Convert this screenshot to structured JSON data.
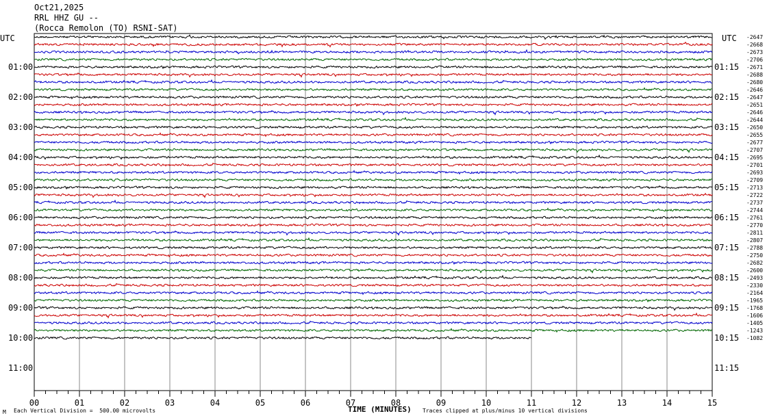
{
  "header": {
    "date": "Oct21,2025",
    "station": "RRL HHZ GU --",
    "location": "(Rocca Remolon (TO) RSNI-SAT)"
  },
  "utc_left": "UTC",
  "utc_right": "UTC",
  "footer": {
    "scale_note": "Each Vertical Division =  500.00 microvolts",
    "clip_note": "Traces clipped at plus/minus 10 vertical divisions",
    "corner_mark": "M"
  },
  "chart_data": {
    "type": "line",
    "title": "",
    "xlabel": "TIME (MINUTES)",
    "ylabel": "",
    "xlim": [
      0,
      15
    ],
    "x_ticks": [
      "00",
      "01",
      "02",
      "03",
      "04",
      "05",
      "06",
      "07",
      "08",
      "09",
      "10",
      "11",
      "12",
      "13",
      "14",
      "15"
    ],
    "left_hour_labels": [
      "01:00",
      "02:00",
      "03:00",
      "04:00",
      "05:00",
      "06:00",
      "07:00",
      "08:00",
      "09:00",
      "10:00",
      "11:00"
    ],
    "right_hour_labels": [
      "01:15",
      "02:15",
      "03:15",
      "04:15",
      "05:15",
      "06:15",
      "07:15",
      "08:15",
      "09:15",
      "10:15",
      "11:15"
    ],
    "trace_colors": [
      "#000000",
      "#cc0000",
      "#0000cc",
      "#006600"
    ],
    "traces_per_hour": 4,
    "trace_minutes": 15,
    "total_traces": 41,
    "last_trace_end_minute": 11.0,
    "right_offsets": [
      "-2647",
      "-2668",
      "-2673",
      "-2706",
      "-2671",
      "-2688",
      "-2680",
      "-2646",
      "-2647",
      "-2651",
      "-2646",
      "-2644",
      "-2650",
      "-2655",
      "-2677",
      "-2707",
      "-2695",
      "-2701",
      "-2693",
      "-2709",
      "-2713",
      "-2722",
      "-2737",
      "-2744",
      "-2761",
      "-2770",
      "-2811",
      "-2807",
      "-2788",
      "-2750",
      "-2682",
      "-2600",
      "-2493",
      "-2330",
      "-2164",
      "-1965",
      "-1768",
      "-1606",
      "-1405",
      "-1243",
      "-1082"
    ]
  }
}
